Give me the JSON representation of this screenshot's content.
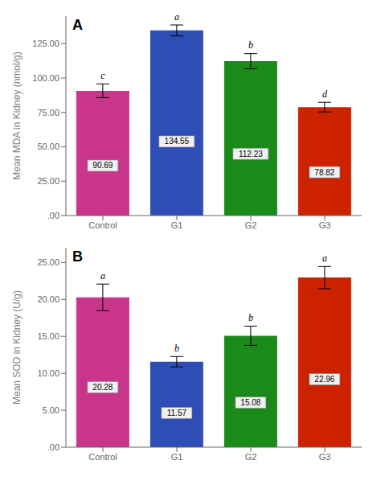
{
  "chart_data": [
    {
      "type": "bar",
      "title": "A",
      "ylabel": "Mean MDA in Kidney (nmol/g)",
      "categories": [
        "Control",
        "G1",
        "G2",
        "G3"
      ],
      "values": [
        90.69,
        134.55,
        112.23,
        78.82
      ],
      "errors": [
        5.0,
        4.0,
        5.5,
        3.5
      ],
      "annotations": [
        "c",
        "a",
        "b",
        "d"
      ],
      "colors": [
        "#C8358A",
        "#2E4DB5",
        "#1A8A1A",
        "#CC2200"
      ],
      "data_labels": true,
      "ylim": [
        0,
        145
      ],
      "yticks": [
        {
          "value": 0,
          "label": ".00"
        },
        {
          "value": 25.0,
          "label": "25.00"
        },
        {
          "value": 50.0,
          "label": "50.00"
        },
        {
          "value": 75.0,
          "label": "75.00"
        },
        {
          "value": 100.0,
          "label": "100.00"
        },
        {
          "value": 125.0,
          "label": "125.00"
        }
      ]
    },
    {
      "type": "bar",
      "title": "B",
      "ylabel": "Mean SOD in Kidney (U/g)",
      "categories": [
        "Control",
        "G1",
        "G2",
        "G3"
      ],
      "values": [
        20.28,
        11.57,
        15.08,
        22.96
      ],
      "errors": [
        1.8,
        0.7,
        1.3,
        1.5
      ],
      "annotations": [
        "a",
        "b",
        "b",
        "a"
      ],
      "colors": [
        "#C8358A",
        "#2E4DB5",
        "#1A8A1A",
        "#CC2200"
      ],
      "data_labels": true,
      "ylim": [
        0,
        27
      ],
      "yticks": [
        {
          "value": 0,
          "label": ".00"
        },
        {
          "value": 5.0,
          "label": "5.00"
        },
        {
          "value": 10.0,
          "label": "10.00"
        },
        {
          "value": 15.0,
          "label": "15.00"
        },
        {
          "value": 20.0,
          "label": "20.00"
        },
        {
          "value": 25.0,
          "label": "25.00"
        }
      ]
    }
  ]
}
